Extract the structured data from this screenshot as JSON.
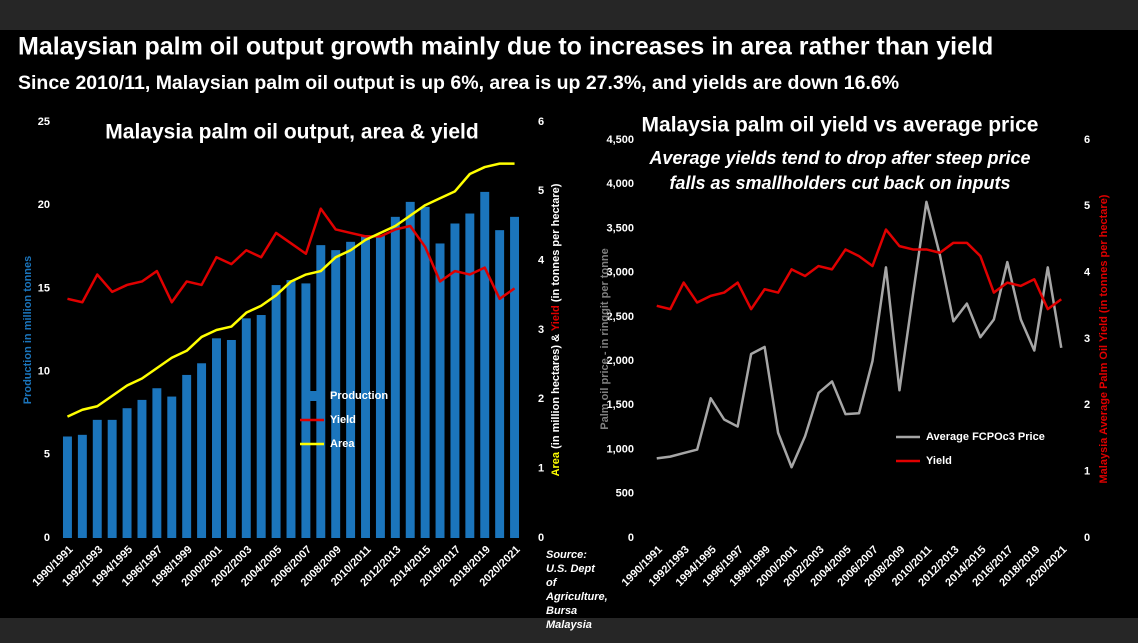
{
  "header": {
    "title": "Malaysian palm oil output growth mainly due to increases in area rather than yield",
    "subtitle": "Since 2010/11, Malaysian palm oil output is up 6%, area is up 27.3%, and yields are down 16.6%"
  },
  "chart_data": [
    {
      "type": "combo",
      "title": "Malaysia palm oil output, area & yield",
      "categories": [
        "1990/1991",
        null,
        "1992/1993",
        null,
        "1994/1995",
        null,
        "1996/1997",
        null,
        "1998/1999",
        null,
        "2000/2001",
        null,
        "2002/2003",
        null,
        "2004/2005",
        null,
        "2006/2007",
        null,
        "2008/2009",
        null,
        "2010/2011",
        null,
        "2012/2013",
        null,
        "2014/2015",
        null,
        "2016/2017",
        null,
        "2018/2019",
        null,
        "2020/2021"
      ],
      "ylabel": "Production in million tonnes",
      "ylabel_color": "#1b75bc",
      "y2label": [
        {
          "text": "Area",
          "color": "#ffff00"
        },
        {
          "text": " (in million hectares) & ",
          "color": "#ffffff"
        },
        {
          "text": "Yield",
          "color": "#e00000"
        },
        {
          "text": " (in tonnes per hectare)",
          "color": "#ffffff"
        }
      ],
      "ylim": [
        0,
        25
      ],
      "yticks": [
        0,
        5,
        10,
        15,
        20,
        25
      ],
      "y2lim": [
        0,
        6
      ],
      "y2ticks": [
        0,
        1,
        2,
        3,
        4,
        5,
        6
      ],
      "source": "Source: U.S. Dept of Agriculture, Bursa Malaysia",
      "legend": "center",
      "series": [
        {
          "name": "Production",
          "type": "bar",
          "color": "#1b75bc",
          "values": [
            6.1,
            6.2,
            7.1,
            7.1,
            7.8,
            8.3,
            9.0,
            8.5,
            9.8,
            10.5,
            12.0,
            11.9,
            13.2,
            13.4,
            15.2,
            15.5,
            15.3,
            17.6,
            17.3,
            17.8,
            18.2,
            18.2,
            19.3,
            20.2,
            19.9,
            17.7,
            18.9,
            19.5,
            20.8,
            18.5,
            19.3
          ]
        },
        {
          "name": "Yield",
          "type": "line",
          "axis": "y2",
          "color": "#e00000",
          "values": [
            3.45,
            3.4,
            3.8,
            3.55,
            3.65,
            3.7,
            3.85,
            3.4,
            3.7,
            3.65,
            4.05,
            3.95,
            4.15,
            4.05,
            4.4,
            4.25,
            4.1,
            4.75,
            4.45,
            4.4,
            4.35,
            4.35,
            4.45,
            4.5,
            4.2,
            3.7,
            3.85,
            3.8,
            3.9,
            3.45,
            3.6
          ]
        },
        {
          "name": "Area",
          "type": "line",
          "axis": "y2",
          "color": "#ffff00",
          "values": [
            1.75,
            1.85,
            1.9,
            2.05,
            2.2,
            2.3,
            2.45,
            2.6,
            2.7,
            2.9,
            3.0,
            3.05,
            3.25,
            3.35,
            3.5,
            3.7,
            3.8,
            3.85,
            4.05,
            4.15,
            4.3,
            4.4,
            4.5,
            4.65,
            4.8,
            4.9,
            5.0,
            5.25,
            5.35,
            5.4,
            5.4
          ]
        }
      ]
    },
    {
      "type": "line",
      "title": "Malaysia palm oil yield vs average price",
      "subtitle": "Average yields tend to drop after steep price falls as smallholders cut back on inputs",
      "categories": [
        "1990/1991",
        null,
        "1992/1993",
        null,
        "1994/1995",
        null,
        "1996/1997",
        null,
        "1998/1999",
        null,
        "2000/2001",
        null,
        "2002/2003",
        null,
        "2004/2005",
        null,
        "2006/2007",
        null,
        "2008/2009",
        null,
        "2010/2011",
        null,
        "2012/2013",
        null,
        "2014/2015",
        null,
        "2016/2017",
        null,
        "2018/2019",
        null,
        "2020/2021"
      ],
      "ylabel": "Palm oil price - in ringgit per tonne",
      "ylabel_color": "#7f7f7f",
      "y2label": [
        {
          "text": "Malaysia Average Palm Oil Yield (in tonnes per hectare)",
          "color": "#e00000"
        }
      ],
      "ylim": [
        0,
        4500
      ],
      "yticks": [
        0,
        500,
        {
          "value": 1000,
          "label": "1,000"
        },
        {
          "value": 1500,
          "label": "1,500"
        },
        {
          "value": 2000,
          "label": "2,000"
        },
        {
          "value": 2500,
          "label": "2,500"
        },
        {
          "value": 3000,
          "label": "3,000"
        },
        {
          "value": 3500,
          "label": "3,500"
        },
        {
          "value": 4000,
          "label": "4,000"
        },
        {
          "value": 4500,
          "label": "4,500"
        }
      ],
      "y2lim": [
        0,
        6
      ],
      "y2ticks": [
        0,
        1,
        2,
        3,
        4,
        5,
        6
      ],
      "legend": "lower right",
      "series": [
        {
          "name": "Average FCPOc3 Price",
          "type": "line",
          "color": "#a6a6a6",
          "values": [
            900,
            920,
            960,
            1000,
            1580,
            1340,
            1260,
            2080,
            2160,
            1190,
            800,
            1150,
            1640,
            1770,
            1400,
            1410,
            2000,
            3060,
            1670,
            2750,
            3800,
            3200,
            2450,
            2650,
            2270,
            2470,
            3120,
            2470,
            2120,
            3060,
            2150
          ]
        },
        {
          "name": "Yield",
          "type": "line",
          "axis": "y2",
          "color": "#e00000",
          "values": [
            3.5,
            3.45,
            3.85,
            3.55,
            3.65,
            3.7,
            3.85,
            3.45,
            3.75,
            3.7,
            4.05,
            3.95,
            4.1,
            4.05,
            4.35,
            4.25,
            4.1,
            4.65,
            4.4,
            4.35,
            4.35,
            4.3,
            4.45,
            4.45,
            4.25,
            3.7,
            3.85,
            3.8,
            3.9,
            3.45,
            3.6
          ]
        }
      ]
    }
  ]
}
